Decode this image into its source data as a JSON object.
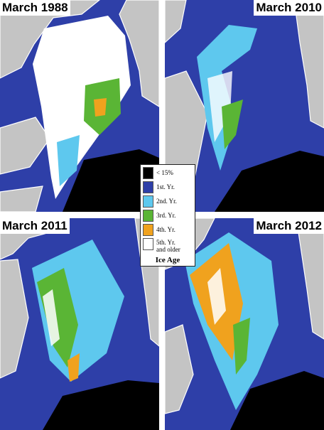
{
  "panels": [
    {
      "title": "March 1988"
    },
    {
      "title": "March 2010"
    },
    {
      "title": "March 2011"
    },
    {
      "title": "March 2012"
    }
  ],
  "legend": {
    "title": "Ice Age",
    "items": [
      {
        "label": "< 15%",
        "color": "#000000"
      },
      {
        "label": "1st. Yr.",
        "color": "#2e3fa8"
      },
      {
        "label": "2nd. Yr.",
        "color": "#5ec8ee"
      },
      {
        "label": "3rd. Yr.",
        "color": "#5ab535"
      },
      {
        "label": "4th. Yr.",
        "color": "#f0a21e"
      },
      {
        "label": "5th. Yr.",
        "label2": "and older",
        "color": "#ffffff"
      }
    ]
  },
  "colors": {
    "land": "#c4c4c4",
    "first_year_ocean": "#2e3fa8",
    "open_water": "#000000",
    "coast": "#ffffff"
  }
}
